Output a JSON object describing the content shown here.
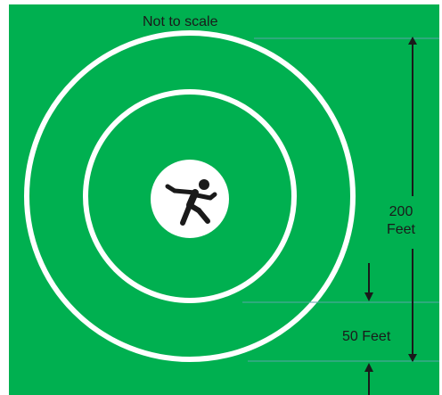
{
  "diagram": {
    "title": "Not to scale",
    "dimension_outer": {
      "value": "200",
      "unit": "Feet"
    },
    "dimension_inner": "50 Feet",
    "colors": {
      "background": "#00b050",
      "rings": "#ffffff",
      "center_disc": "#ffffff",
      "figure": "#1a1a1a",
      "arrows": "#1a1a1a",
      "guide_lines": "#5aa6a8"
    },
    "icons": [
      "falling-person-icon"
    ]
  }
}
